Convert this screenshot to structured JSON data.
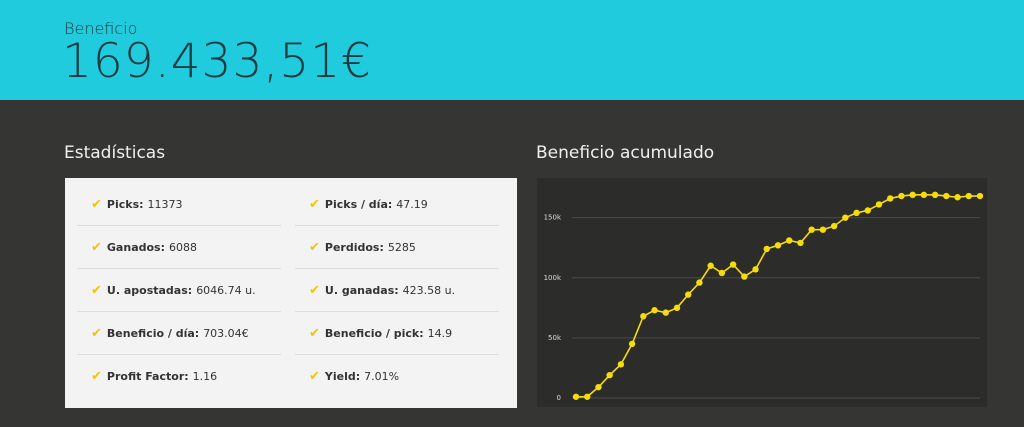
{
  "header": {
    "label": "Beneficio",
    "value": "169.433,51€"
  },
  "stats": {
    "title": "Estadísticas",
    "items": [
      {
        "label": "Picks:",
        "value": "11373"
      },
      {
        "label": "Picks / día:",
        "value": "47.19"
      },
      {
        "label": "Ganados:",
        "value": "6088"
      },
      {
        "label": "Perdidos:",
        "value": "5285"
      },
      {
        "label": "U. apostadas:",
        "value": "6046.74 u."
      },
      {
        "label": "U. ganadas:",
        "value": "423.58 u."
      },
      {
        "label": "Beneficio / día:",
        "value": "703.04€"
      },
      {
        "label": "Beneficio / pick:",
        "value": "14.9"
      },
      {
        "label": "Profit Factor:",
        "value": "1.16"
      },
      {
        "label": "Yield:",
        "value": "7.01%"
      }
    ]
  },
  "chart_data": {
    "type": "line",
    "title": "Beneficio acumulado",
    "categories": [
      null,
      null,
      null,
      null,
      null,
      null,
      null,
      null,
      null,
      null,
      null,
      null,
      null,
      null,
      null,
      null,
      null,
      null,
      null,
      null,
      null,
      null,
      null,
      null,
      null,
      null,
      null,
      null,
      null,
      null,
      null,
      null,
      null,
      null,
      null,
      null,
      null
    ],
    "series": [
      {
        "name": null,
        "color": "#f5dc0a",
        "values": [
          1000,
          1000,
          9000,
          19000,
          28000,
          45000,
          68000,
          73000,
          71000,
          75000,
          86000,
          96000,
          110000,
          104000,
          111000,
          101000,
          107000,
          124000,
          127000,
          131000,
          129000,
          140000,
          140000,
          143000,
          150000,
          154000,
          156000,
          161000,
          166000,
          168000,
          169000,
          169000,
          169000,
          168000,
          167000,
          168000,
          168000
        ]
      }
    ],
    "ylim": [
      -7500,
      183000
    ],
    "yticks": [
      0,
      {
        "value": 50000,
        "label": "50k"
      },
      {
        "value": 100000,
        "label": "100k"
      },
      {
        "value": 150000,
        "label": "150k"
      }
    ],
    "grid": true
  }
}
